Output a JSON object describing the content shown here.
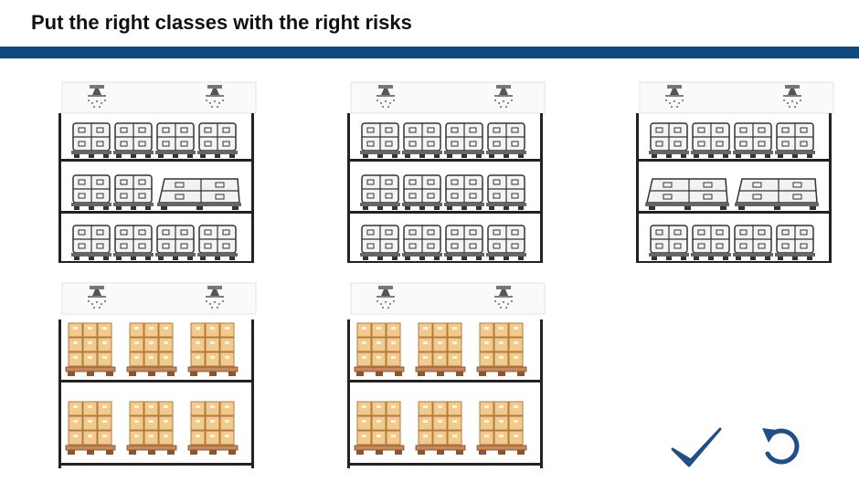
{
  "header": {
    "title": "Put the right classes with the right risks",
    "bar_color": "#10477c"
  },
  "racks": [
    {
      "name": "rack-a",
      "type": "gray",
      "rows": [
        "4",
        "2+2w",
        "4"
      ]
    },
    {
      "name": "rack-b",
      "type": "gray",
      "rows": [
        "4",
        "4",
        "4"
      ]
    },
    {
      "name": "rack-c",
      "type": "gray",
      "rows": [
        "4",
        "2w+2w",
        "4"
      ]
    },
    {
      "name": "rack-d",
      "type": "cardboard",
      "rows": [
        "3",
        "3"
      ]
    },
    {
      "name": "rack-e",
      "type": "cardboard",
      "rows": [
        "3",
        "3"
      ]
    }
  ],
  "icons": {
    "sprinkler": "sprinkler-icon",
    "check": "check-icon",
    "reset": "reset-icon"
  },
  "colors": {
    "accent": "#1f4f86",
    "box": "#f4c98c",
    "box_edge": "#b07d40",
    "pallet": "#c8885a",
    "rack_line": "#222222"
  }
}
